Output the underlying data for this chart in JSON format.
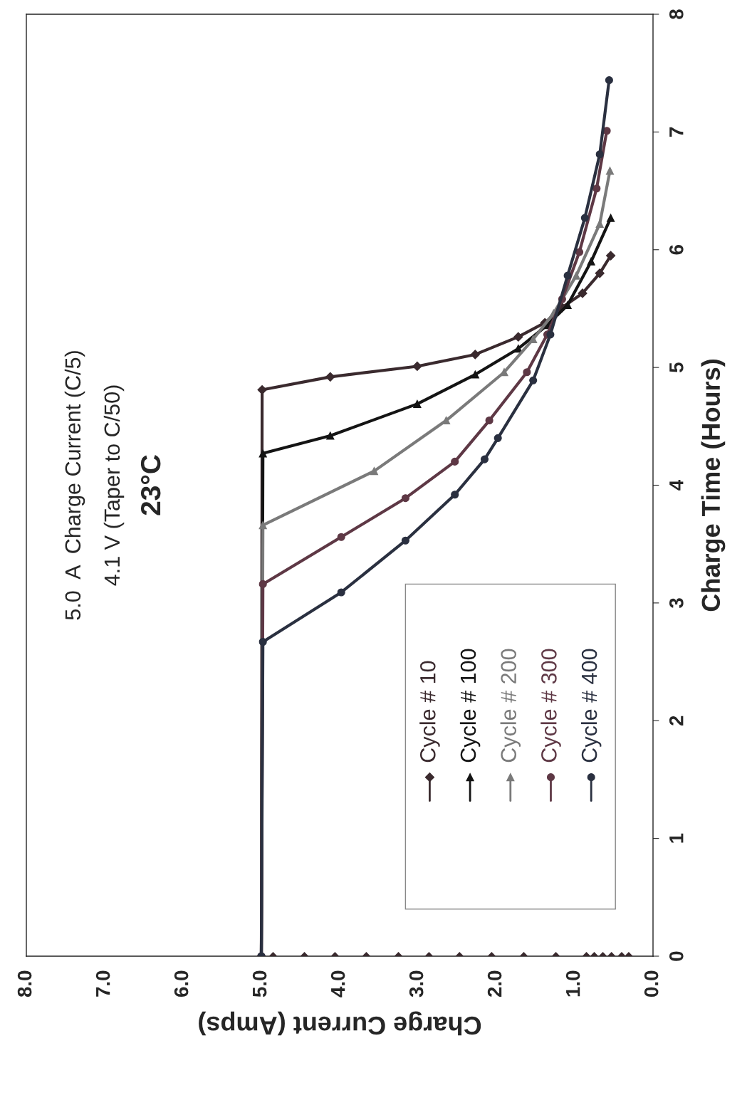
{
  "chart_data": {
    "type": "line",
    "title": "5.0  A  Charge Current (C/5)",
    "subtitle": "4.1 V (Taper to C/50)",
    "annotations": [
      "23°C"
    ],
    "xlabel": "Charge Current (Amps)",
    "ylabel": "Charge Time (Hours)",
    "ylim": [
      0,
      8
    ],
    "yticks": [
      0,
      1,
      2,
      3,
      4,
      5,
      6,
      7,
      8
    ],
    "xlim": [
      8,
      0
    ],
    "xticks": [
      {
        "value": 0,
        "label": "0.0"
      },
      {
        "value": 1,
        "label": "1.0"
      },
      {
        "value": 2,
        "label": "2.0"
      },
      {
        "value": 3,
        "label": "3.0"
      },
      {
        "value": 4,
        "label": "4.0"
      },
      {
        "value": 5,
        "label": "5.0"
      },
      {
        "value": 6,
        "label": "6.0"
      },
      {
        "value": 7,
        "label": "7.0"
      },
      {
        "value": 8,
        "label": "8.0"
      }
    ],
    "grid": false,
    "legend": "bottom right",
    "series": [
      {
        "name": "Cycle # 10",
        "color": "#3a2a2e",
        "marker": "diamond",
        "values": [
          0,
          4.81,
          4.92,
          5.01,
          5.11,
          5.26,
          5.38,
          5.51,
          5.63,
          5.8,
          5.95
        ],
        "x": [
          5.0,
          4.99,
          4.12,
          3.01,
          2.27,
          1.72,
          1.38,
          1.16,
          0.9,
          0.68,
          0.54
        ]
      },
      {
        "name": "Cycle # 100",
        "color": "#141414",
        "marker": "triangle",
        "values": [
          0,
          4.27,
          4.42,
          4.69,
          4.94,
          5.16,
          5.36,
          5.53,
          5.9,
          6.27
        ],
        "x": [
          5.0,
          4.98,
          4.12,
          3.01,
          2.27,
          1.72,
          1.35,
          1.09,
          0.79,
          0.54
        ]
      },
      {
        "name": "Cycle # 200",
        "color": "#7a7a7a",
        "marker": "triangle",
        "values": [
          0,
          3.66,
          4.12,
          4.55,
          4.96,
          5.24,
          5.46,
          5.78,
          6.22,
          6.67
        ],
        "x": [
          5.0,
          4.98,
          3.56,
          2.64,
          1.9,
          1.53,
          1.27,
          0.98,
          0.68,
          0.55
        ]
      },
      {
        "name": "Cycle # 300",
        "color": "#5e3845",
        "marker": "circle",
        "values": [
          0,
          3.16,
          3.56,
          3.89,
          4.2,
          4.55,
          4.96,
          5.28,
          5.58,
          5.98,
          6.52,
          7.01
        ],
        "x": [
          5.0,
          4.98,
          3.98,
          3.16,
          2.53,
          2.09,
          1.61,
          1.35,
          1.16,
          0.94,
          0.72,
          0.59
        ]
      },
      {
        "name": "Cycle # 400",
        "color": "#2a3040",
        "marker": "circle",
        "values": [
          0,
          2.67,
          3.09,
          3.53,
          3.92,
          4.22,
          4.4,
          4.89,
          5.28,
          5.78,
          6.27,
          6.81,
          7.44
        ],
        "x": [
          5.0,
          4.98,
          3.98,
          3.16,
          2.53,
          2.15,
          1.98,
          1.53,
          1.31,
          1.09,
          0.87,
          0.68,
          0.56
        ]
      },
      {
        "type": "scatter",
        "color": "#3a2a2e",
        "marker": "diamond",
        "values": [
          0,
          0,
          0,
          0,
          0,
          0,
          0,
          0,
          0,
          0,
          0,
          0,
          0,
          0,
          0,
          0
        ],
        "x": [
          4.85,
          4.45,
          4.06,
          3.66,
          3.25,
          2.86,
          2.47,
          2.06,
          1.65,
          1.24,
          0.85,
          0.75,
          0.64,
          0.53,
          0.4,
          0.31
        ]
      }
    ]
  }
}
